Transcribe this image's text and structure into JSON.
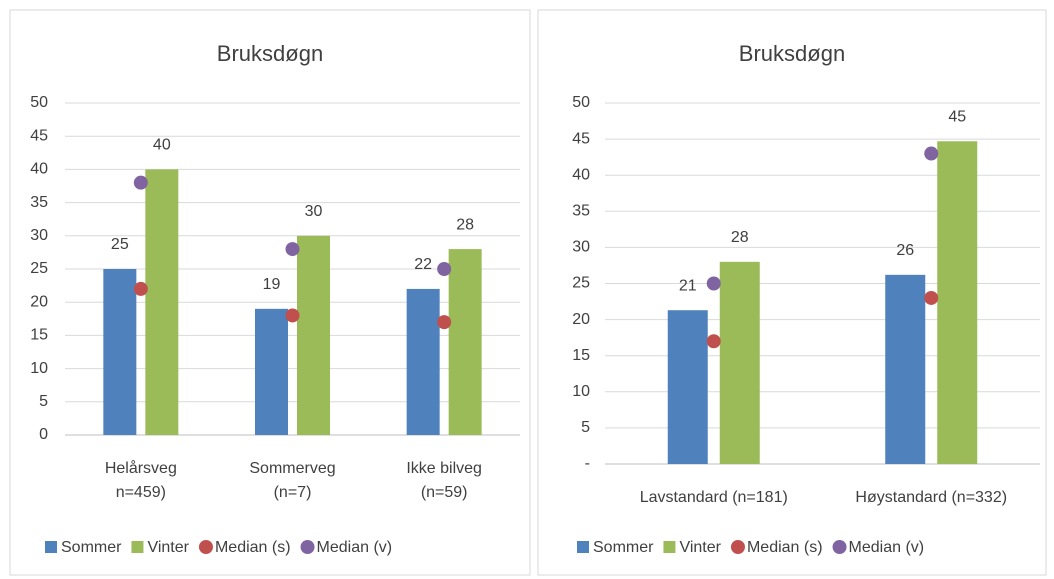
{
  "chart_data": [
    {
      "type": "bar",
      "title": "Bruksdøgn",
      "categories": [
        [
          "Helårsveg",
          "n=459)"
        ],
        [
          "Sommerveg",
          "(n=7)"
        ],
        [
          "Ikke bilveg",
          "(n=59)"
        ]
      ],
      "series": [
        {
          "name": "Sommer",
          "type": "bar",
          "color": "#4f81bd",
          "values": [
            25,
            19,
            22
          ]
        },
        {
          "name": "Vinter",
          "type": "bar",
          "color": "#9bbb59",
          "values": [
            40,
            30,
            28
          ]
        },
        {
          "name": "Median (s)",
          "type": "scatter",
          "color": "#c0504d",
          "values": [
            22,
            18,
            17
          ]
        },
        {
          "name": "Median (v)",
          "type": "scatter",
          "color": "#8064a2",
          "values": [
            38,
            28,
            25
          ]
        }
      ],
      "ylim": [
        0,
        50
      ],
      "yticks": [
        0,
        5,
        10,
        15,
        20,
        25,
        30,
        35,
        40,
        45,
        50
      ],
      "grid": true,
      "legend": "bottom"
    },
    {
      "type": "bar",
      "title": "Bruksdøgn",
      "categories": [
        [
          "Lavstandard (n=181)"
        ],
        [
          "Høystandard (n=332)"
        ]
      ],
      "series": [
        {
          "name": "Sommer",
          "type": "bar",
          "color": "#4f81bd",
          "values": [
            21.3,
            26.2
          ],
          "value_labels": [
            "21",
            "26"
          ]
        },
        {
          "name": "Vinter",
          "type": "bar",
          "color": "#9bbb59",
          "values": [
            28,
            44.7
          ],
          "value_labels": [
            "28",
            "45"
          ]
        },
        {
          "name": "Median (s)",
          "type": "scatter",
          "color": "#c0504d",
          "values": [
            17,
            23
          ]
        },
        {
          "name": "Median (v)",
          "type": "scatter",
          "color": "#8064a2",
          "values": [
            25,
            43
          ]
        }
      ],
      "ylim": [
        0,
        50
      ],
      "yticks": [
        {
          "value": 0,
          "label": "-"
        },
        5,
        10,
        15,
        20,
        25,
        30,
        35,
        40,
        45,
        50
      ],
      "grid": true,
      "legend": "bottom"
    }
  ]
}
